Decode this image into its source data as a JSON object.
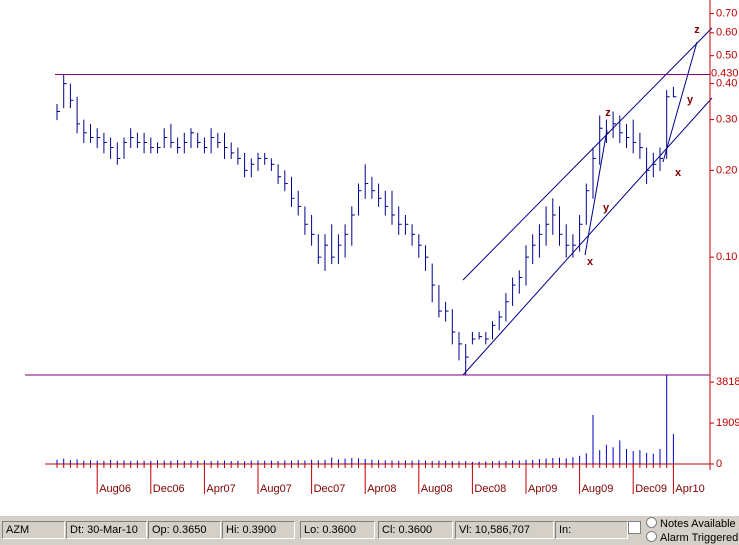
{
  "chart_data": [
    {
      "type": "hlc",
      "color": "#00008b",
      "log_scale": true,
      "ylim": [
        0.039,
        0.78
      ],
      "yticks": [
        {
          "value": 0.1,
          "label": "0.10"
        },
        {
          "value": 0.2,
          "label": "0.20"
        },
        {
          "value": 0.3,
          "label": "0.30"
        },
        {
          "value": 0.4,
          "label": "0.40"
        },
        {
          "value": 0.5,
          "label": "0.50"
        },
        {
          "value": 0.6,
          "label": "0.60"
        },
        {
          "value": 0.7,
          "label": "0.70"
        }
      ],
      "hlines": [
        {
          "value": 0.43,
          "label": "0.430"
        },
        {
          "value": 0.039
        }
      ],
      "annotations": [
        "z",
        "z",
        "y",
        "y",
        "x",
        "x"
      ],
      "high": [
        0.34,
        0.43,
        0.4,
        0.36,
        0.3,
        0.29,
        0.28,
        0.27,
        0.26,
        0.25,
        0.26,
        0.28,
        0.27,
        0.27,
        0.26,
        0.25,
        0.28,
        0.29,
        0.26,
        0.27,
        0.28,
        0.27,
        0.26,
        0.28,
        0.27,
        0.27,
        0.25,
        0.24,
        0.23,
        0.22,
        0.23,
        0.23,
        0.22,
        0.21,
        0.2,
        0.19,
        0.17,
        0.15,
        0.14,
        0.12,
        0.12,
        0.13,
        0.12,
        0.13,
        0.15,
        0.18,
        0.21,
        0.19,
        0.18,
        0.17,
        0.17,
        0.15,
        0.14,
        0.13,
        0.12,
        0.11,
        0.095,
        0.08,
        0.07,
        0.066,
        0.055,
        0.05,
        0.055,
        0.055,
        0.055,
        0.06,
        0.065,
        0.075,
        0.085,
        0.09,
        0.11,
        0.12,
        0.13,
        0.15,
        0.16,
        0.15,
        0.13,
        0.12,
        0.14,
        0.18,
        0.24,
        0.31,
        0.3,
        0.32,
        0.31,
        0.29,
        0.3,
        0.27,
        0.24,
        0.23,
        0.24,
        0.38,
        0.39
      ],
      "low": [
        0.3,
        0.33,
        0.33,
        0.27,
        0.25,
        0.25,
        0.24,
        0.23,
        0.22,
        0.21,
        0.22,
        0.24,
        0.24,
        0.23,
        0.23,
        0.23,
        0.24,
        0.24,
        0.23,
        0.23,
        0.24,
        0.24,
        0.23,
        0.23,
        0.24,
        0.22,
        0.22,
        0.21,
        0.19,
        0.19,
        0.2,
        0.21,
        0.2,
        0.18,
        0.17,
        0.15,
        0.14,
        0.12,
        0.11,
        0.095,
        0.09,
        0.095,
        0.095,
        0.1,
        0.11,
        0.14,
        0.16,
        0.16,
        0.15,
        0.14,
        0.13,
        0.12,
        0.12,
        0.11,
        0.1,
        0.09,
        0.07,
        0.062,
        0.06,
        0.05,
        0.044,
        0.039,
        0.05,
        0.052,
        0.05,
        0.052,
        0.056,
        0.06,
        0.068,
        0.075,
        0.08,
        0.095,
        0.1,
        0.11,
        0.12,
        0.11,
        0.1,
        0.1,
        0.105,
        0.13,
        0.16,
        0.21,
        0.25,
        0.26,
        0.25,
        0.24,
        0.23,
        0.22,
        0.18,
        0.19,
        0.2,
        0.22,
        0.36
      ],
      "close": [
        0.32,
        0.4,
        0.35,
        0.29,
        0.27,
        0.26,
        0.26,
        0.25,
        0.24,
        0.22,
        0.25,
        0.26,
        0.25,
        0.25,
        0.24,
        0.24,
        0.26,
        0.25,
        0.24,
        0.25,
        0.27,
        0.25,
        0.24,
        0.26,
        0.25,
        0.24,
        0.23,
        0.22,
        0.2,
        0.21,
        0.22,
        0.22,
        0.21,
        0.19,
        0.18,
        0.16,
        0.15,
        0.13,
        0.12,
        0.1,
        0.11,
        0.1,
        0.11,
        0.12,
        0.14,
        0.17,
        0.18,
        0.17,
        0.16,
        0.15,
        0.14,
        0.13,
        0.13,
        0.12,
        0.11,
        0.1,
        0.08,
        0.065,
        0.065,
        0.055,
        0.05,
        0.045,
        0.052,
        0.053,
        0.052,
        0.058,
        0.062,
        0.07,
        0.08,
        0.085,
        0.1,
        0.11,
        0.12,
        0.13,
        0.14,
        0.12,
        0.11,
        0.11,
        0.13,
        0.17,
        0.22,
        0.28,
        0.27,
        0.29,
        0.27,
        0.26,
        0.25,
        0.24,
        0.2,
        0.21,
        0.22,
        0.36,
        0.36
      ]
    },
    {
      "type": "bar",
      "color": "#0000cd",
      "ylim": [
        0,
        4150
      ],
      "yticks": [
        0,
        1909,
        3818
      ],
      "categories": [
        null,
        null,
        null,
        null,
        null,
        null,
        "Aug06",
        null,
        null,
        null,
        null,
        null,
        null,
        null,
        "Dec06",
        null,
        null,
        null,
        null,
        null,
        null,
        null,
        "Apr07",
        null,
        null,
        null,
        null,
        null,
        null,
        null,
        "Aug07",
        null,
        null,
        null,
        null,
        null,
        null,
        null,
        "Dec07",
        null,
        null,
        null,
        null,
        null,
        null,
        null,
        "Apr08",
        null,
        null,
        null,
        null,
        null,
        null,
        null,
        "Aug08",
        null,
        null,
        null,
        null,
        null,
        null,
        null,
        "Dec08",
        null,
        null,
        null,
        null,
        null,
        null,
        null,
        "Apr09",
        null,
        null,
        null,
        null,
        null,
        null,
        null,
        "Aug09",
        null,
        null,
        null,
        null,
        null,
        null,
        null,
        "Dec09",
        null,
        null,
        null,
        null,
        null,
        "Apr10"
      ],
      "values": [
        200,
        250,
        180,
        220,
        150,
        170,
        160,
        140,
        190,
        150,
        170,
        130,
        160,
        150,
        140,
        170,
        160,
        150,
        180,
        140,
        160,
        150,
        170,
        130,
        150,
        160,
        140,
        150,
        130,
        160,
        170,
        150,
        160,
        140,
        170,
        150,
        180,
        160,
        200,
        170,
        190,
        300,
        220,
        250,
        280,
        260,
        230,
        200,
        180,
        170,
        160,
        150,
        170,
        160,
        180,
        150,
        140,
        160,
        150,
        130,
        120,
        140,
        100,
        110,
        120,
        130,
        150,
        140,
        170,
        160,
        200,
        190,
        230,
        250,
        280,
        300,
        260,
        320,
        380,
        500,
        2285,
        650,
        900,
        780,
        1100,
        700,
        600,
        650,
        520,
        480,
        700,
        4150,
        1400
      ]
    }
  ],
  "status_bar": {
    "symbol": "AZM",
    "date": "Dt: 30-Mar-10",
    "open": "Op: 0.3650",
    "high": "Hi: 0.3900",
    "low": "Lo: 0.3600",
    "close": "Cl: 0.3600",
    "volume": "Vl: 10,586,707",
    "input": "In:",
    "notes": "Notes Available",
    "alarm": "Alarm Triggered"
  }
}
